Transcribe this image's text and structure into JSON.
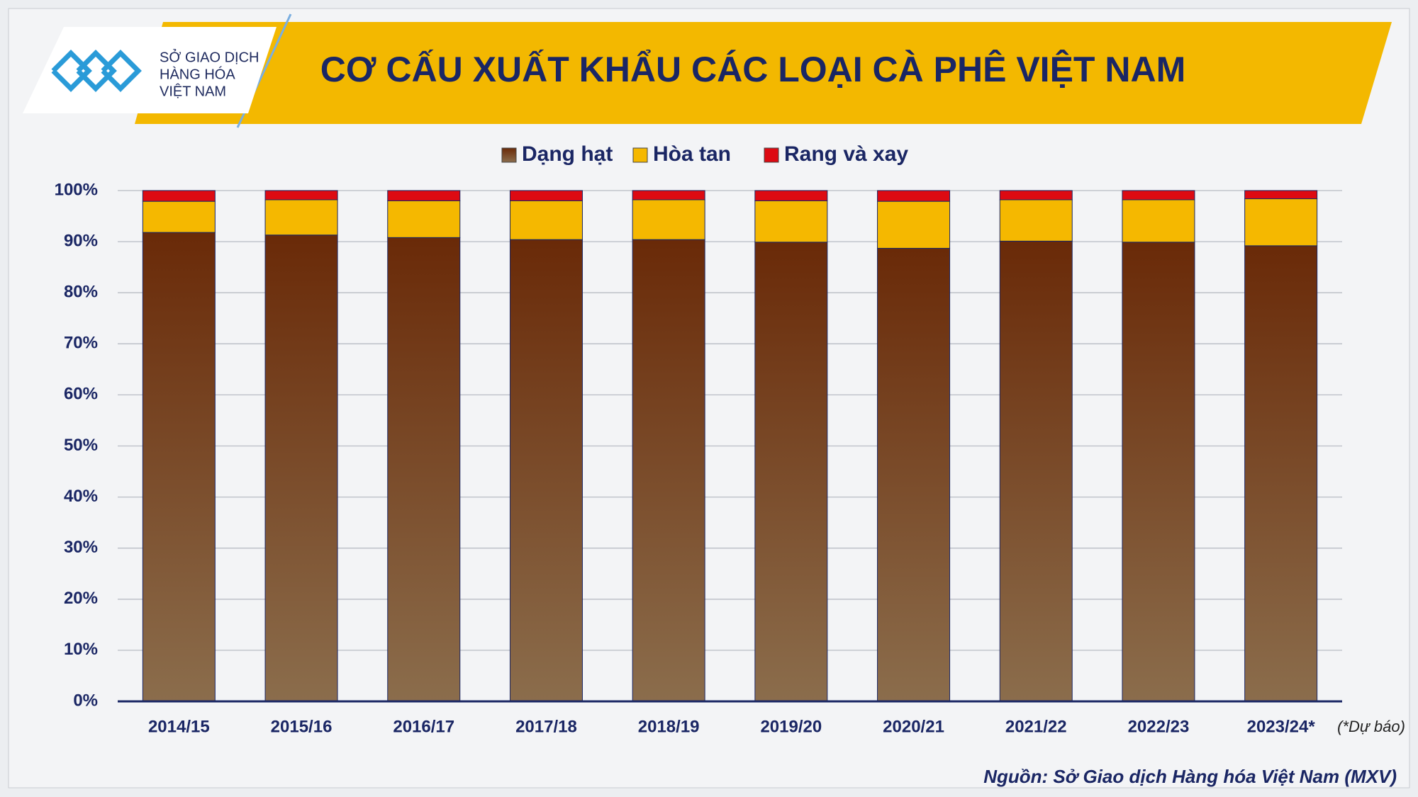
{
  "logo": {
    "lines": [
      "SỞ GIAO DỊCH",
      "HÀNG HÓA",
      "VIỆT NAM"
    ]
  },
  "chart_data": {
    "type": "stacked_bar",
    "title": "CƠ CẤU XUẤT KHẨU CÁC LOẠI CÀ PHÊ VIỆT NAM",
    "categories": [
      "2014/15",
      "2015/16",
      "2016/17",
      "2017/18",
      "2018/19",
      "2019/20",
      "2020/21",
      "2021/22",
      "2022/23",
      "2023/24*"
    ],
    "series": [
      {
        "name": "Dạng hạt",
        "color": "#6e3210",
        "values": [
          91.8,
          91.3,
          90.8,
          90.4,
          90.4,
          89.9,
          88.7,
          90.1,
          89.9,
          89.2
        ]
      },
      {
        "name": "Hòa tan",
        "color": "#f5b800",
        "values": [
          6.1,
          6.9,
          7.2,
          7.6,
          7.8,
          8.1,
          9.2,
          8.1,
          8.3,
          9.2
        ]
      },
      {
        "name": "Rang và xay",
        "color": "#dd0a12",
        "values": [
          2.1,
          1.8,
          2.0,
          2.0,
          1.8,
          2.0,
          2.1,
          1.8,
          1.8,
          1.6
        ]
      }
    ],
    "ylim": [
      0,
      100
    ],
    "yticks": [
      {
        "value": 0,
        "label": "0%"
      },
      {
        "value": 10,
        "label": "10%"
      },
      {
        "value": 20,
        "label": "20%"
      },
      {
        "value": 30,
        "label": "30%"
      },
      {
        "value": 40,
        "label": "40%"
      },
      {
        "value": 50,
        "label": "50%"
      },
      {
        "value": 60,
        "label": "60%"
      },
      {
        "value": 70,
        "label": "70%"
      },
      {
        "value": 80,
        "label": "80%"
      },
      {
        "value": 90,
        "label": "90%"
      },
      {
        "value": 100,
        "label": "100%"
      }
    ],
    "grid": true,
    "note": "(*Dự báo)",
    "source": "Nguồn: Sở Giao dịch Hàng hóa Việt Nam (MXV)"
  }
}
